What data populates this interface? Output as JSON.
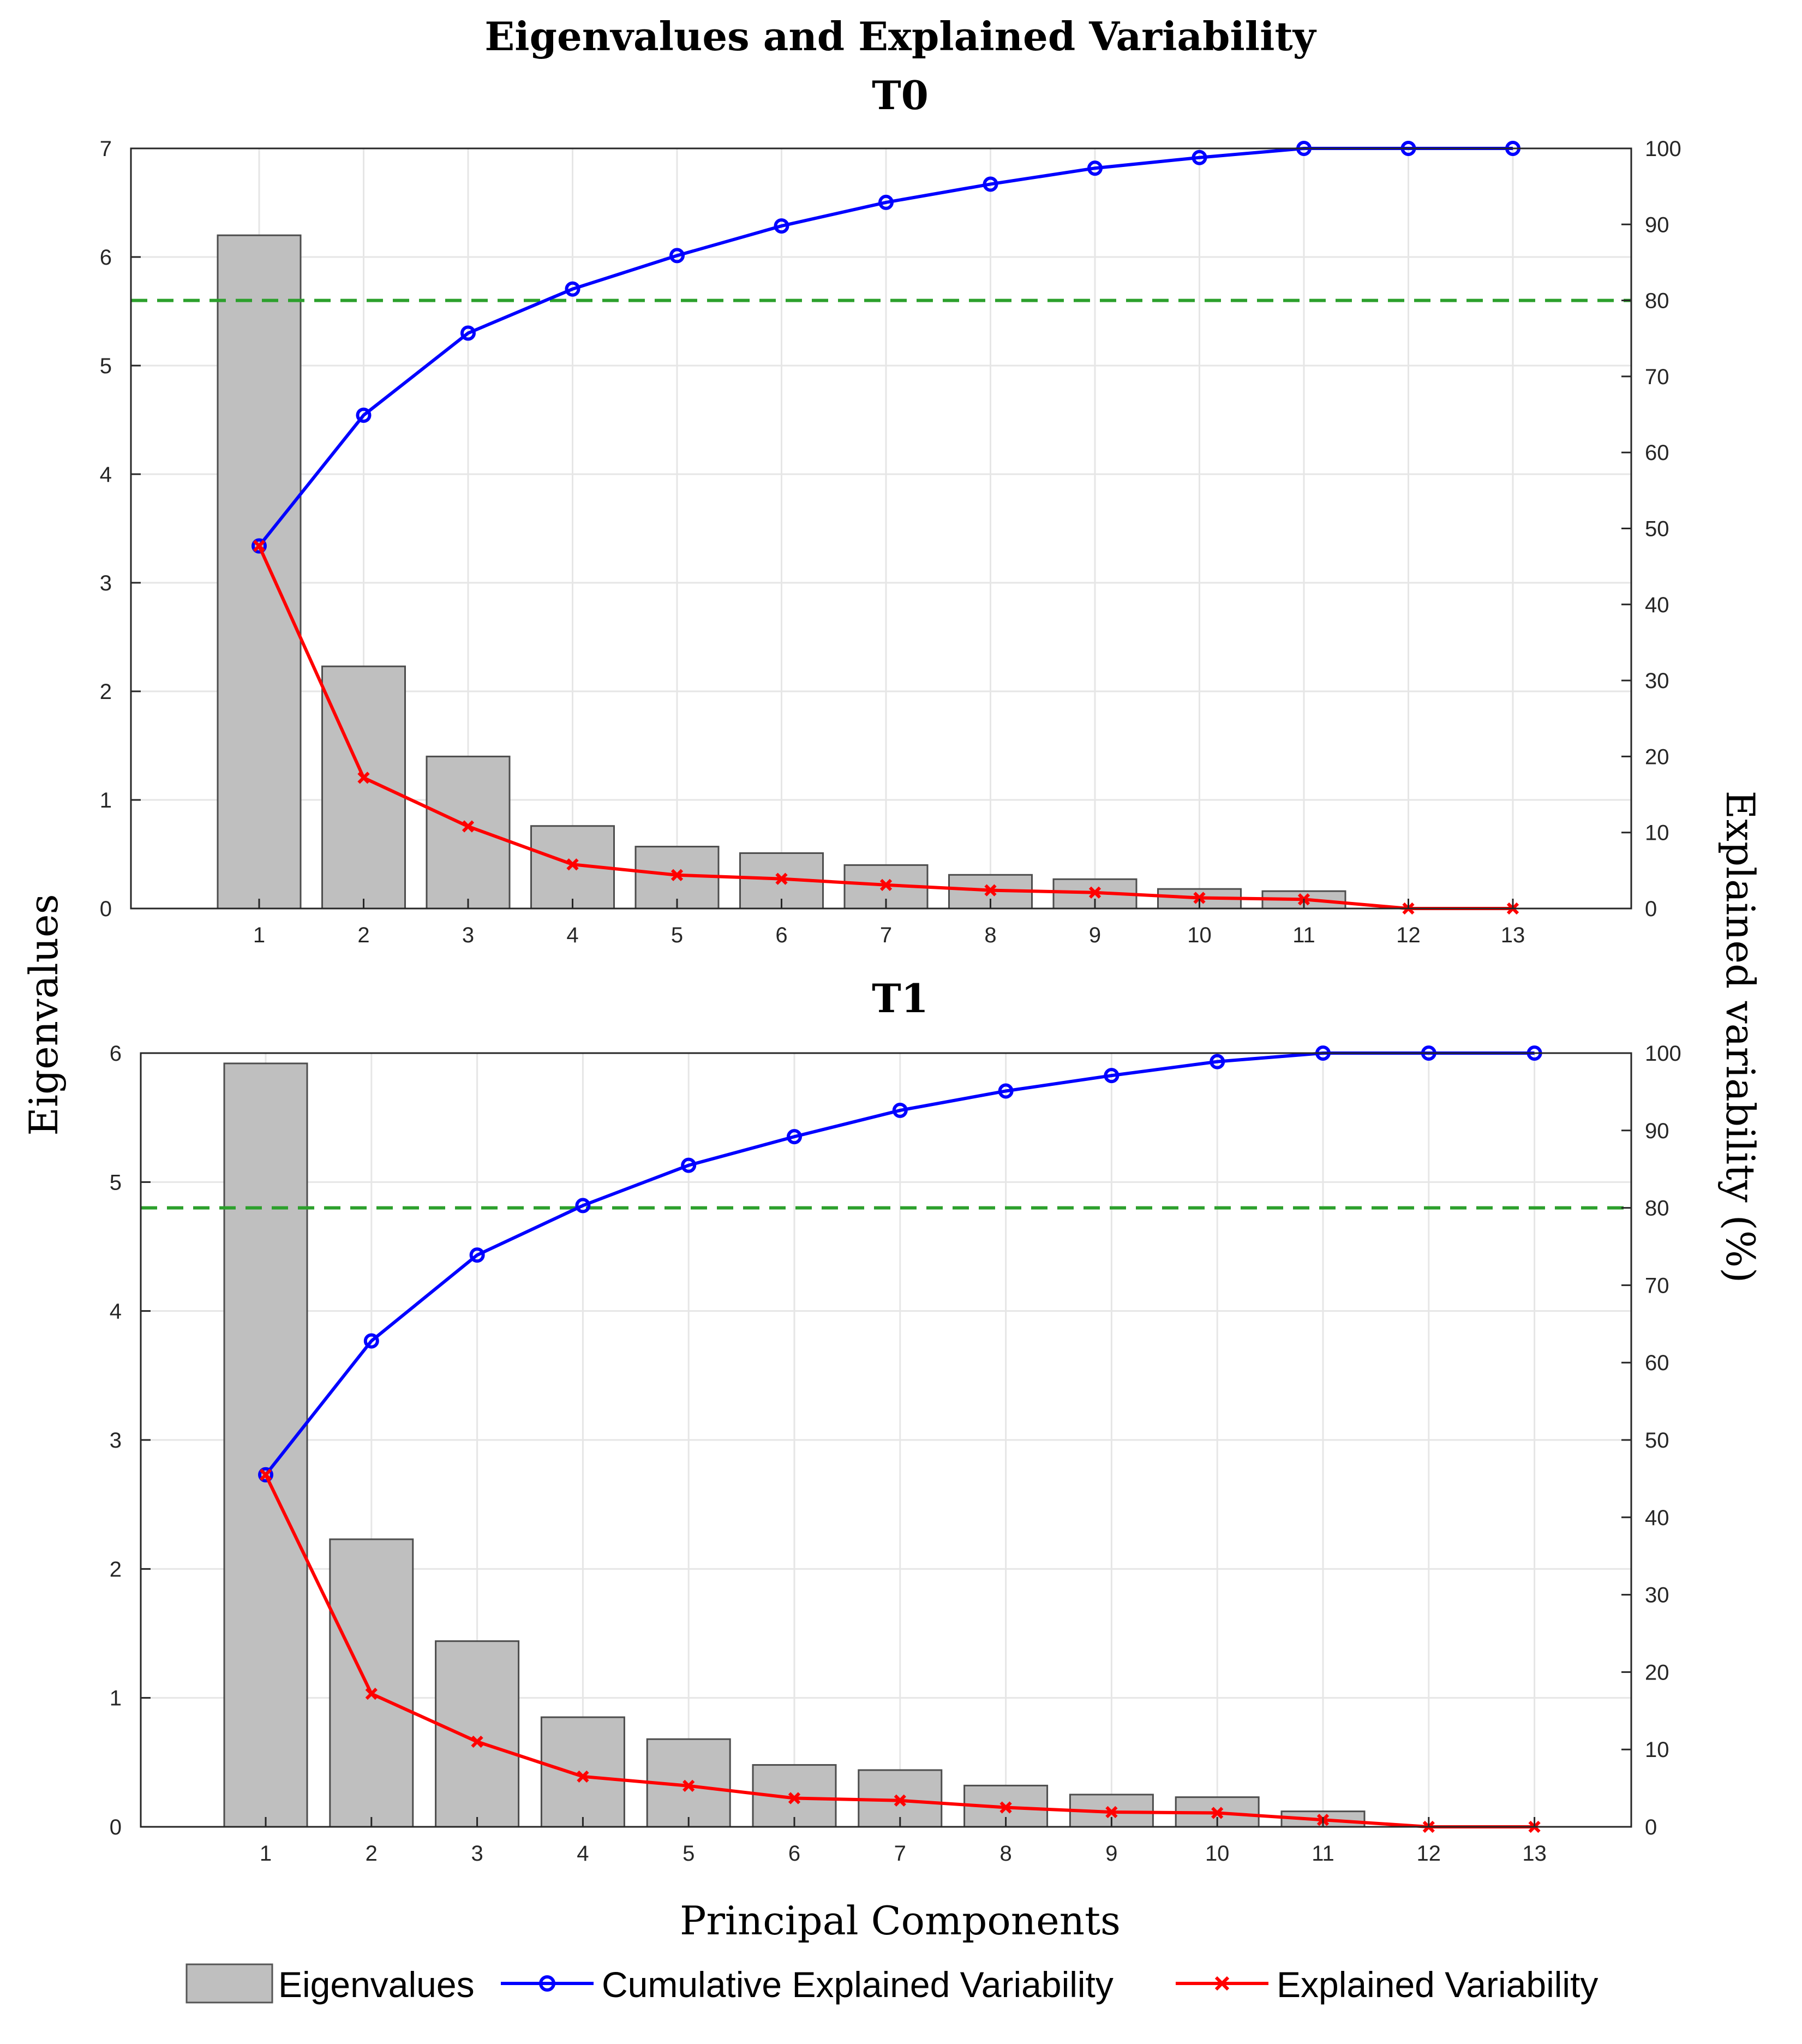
{
  "figure": {
    "title": "Eigenvalues and Explained Variability",
    "xlabel": "Principal Components",
    "ylabel_left": "Eigenvalues",
    "ylabel_right": "Explained variability (%)"
  },
  "legend": {
    "placement": "bottom",
    "items": [
      {
        "label": "Eigenvalues",
        "kind": "bar",
        "color": "#bfbfbf"
      },
      {
        "label": "Cumulative Explained Variability",
        "kind": "line-circle",
        "color": "#0000ff"
      },
      {
        "label": "Explained Variability",
        "kind": "line-x",
        "color": "#ff0000"
      }
    ]
  },
  "chart_data": [
    {
      "type": "bar",
      "title": "T0",
      "categories": [
        1,
        2,
        3,
        4,
        5,
        6,
        7,
        8,
        9,
        10,
        11,
        12,
        13
      ],
      "y_left": {
        "ylim": [
          0,
          7
        ],
        "ticks": [
          0,
          1,
          2,
          3,
          4,
          5,
          6,
          7
        ]
      },
      "y_right": {
        "ylim": [
          0,
          100
        ],
        "ticks": [
          0,
          10,
          20,
          30,
          40,
          50,
          60,
          70,
          80,
          90,
          100
        ]
      },
      "threshold": {
        "value": 80,
        "axis": "right",
        "color": "#2ca02c",
        "style": "dashed"
      },
      "grid": true,
      "series": [
        {
          "name": "Eigenvalues",
          "kind": "bar",
          "axis": "left",
          "color": "#bfbfbf",
          "values": [
            6.2,
            2.23,
            1.4,
            0.76,
            0.57,
            0.51,
            0.4,
            0.31,
            0.27,
            0.18,
            0.16,
            0.0,
            0.0
          ]
        },
        {
          "name": "Cumulative Explained Variability",
          "kind": "line",
          "marker": "circle",
          "axis": "right",
          "color": "#0000ff",
          "values": [
            47.7,
            64.9,
            75.7,
            81.5,
            85.9,
            89.8,
            92.9,
            95.3,
            97.4,
            98.8,
            100,
            100,
            100
          ]
        },
        {
          "name": "Explained Variability",
          "kind": "line",
          "marker": "x",
          "axis": "right",
          "color": "#ff0000",
          "values": [
            47.7,
            17.2,
            10.8,
            5.8,
            4.4,
            3.9,
            3.1,
            2.4,
            2.1,
            1.4,
            1.2,
            0,
            0
          ]
        }
      ]
    },
    {
      "type": "bar",
      "title": "T1",
      "categories": [
        1,
        2,
        3,
        4,
        5,
        6,
        7,
        8,
        9,
        10,
        11,
        12,
        13
      ],
      "y_left": {
        "ylim": [
          0,
          6
        ],
        "ticks": [
          0,
          1,
          2,
          3,
          4,
          5,
          6
        ]
      },
      "y_right": {
        "ylim": [
          0,
          100
        ],
        "ticks": [
          0,
          10,
          20,
          30,
          40,
          50,
          60,
          70,
          80,
          90,
          100
        ]
      },
      "threshold": {
        "value": 80,
        "axis": "right",
        "color": "#2ca02c",
        "style": "dashed"
      },
      "grid": true,
      "series": [
        {
          "name": "Eigenvalues",
          "kind": "bar",
          "axis": "left",
          "color": "#bfbfbf",
          "values": [
            5.92,
            2.23,
            1.44,
            0.85,
            0.68,
            0.48,
            0.44,
            0.32,
            0.25,
            0.23,
            0.12,
            0.0,
            0.0
          ]
        },
        {
          "name": "Cumulative Explained Variability",
          "kind": "line",
          "marker": "circle",
          "axis": "right",
          "color": "#0000ff",
          "values": [
            45.5,
            62.8,
            73.9,
            80.3,
            85.5,
            89.2,
            92.6,
            95.1,
            97.1,
            98.9,
            100,
            100,
            100
          ]
        },
        {
          "name": "Explained Variability",
          "kind": "line",
          "marker": "x",
          "axis": "right",
          "color": "#ff0000",
          "values": [
            45.5,
            17.2,
            11.0,
            6.5,
            5.3,
            3.7,
            3.4,
            2.5,
            1.9,
            1.8,
            0.9,
            0,
            0
          ]
        }
      ]
    }
  ]
}
